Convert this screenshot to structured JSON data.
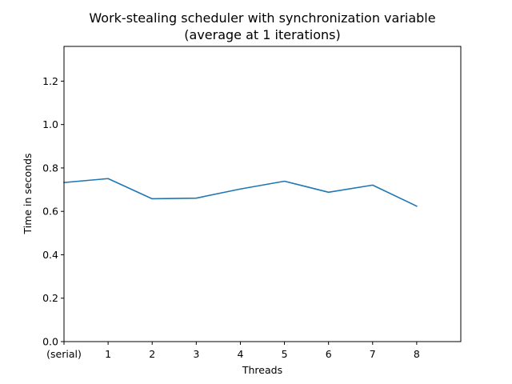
{
  "chart_data": {
    "type": "line",
    "title": "Work-stealing scheduler with synchronization variable",
    "subtitle": "(average at 1 iterations)",
    "xlabel": "Threads",
    "ylabel": "Time in seconds",
    "x": [
      0,
      1,
      2,
      3,
      4,
      5,
      6,
      7,
      8
    ],
    "x_tick_labels": [
      "(serial)",
      "1",
      "2",
      "3",
      "4",
      "5",
      "6",
      "7",
      "8"
    ],
    "xlim": [
      0,
      9
    ],
    "ylim": [
      0,
      1.36
    ],
    "y_ticks": [
      0.0,
      0.2,
      0.4,
      0.6,
      0.8,
      1.0,
      1.2
    ],
    "y_tick_labels": [
      "0.0",
      "0.2",
      "0.4",
      "0.6",
      "0.8",
      "1.0",
      "1.2"
    ],
    "grid": false,
    "series": [
      {
        "color": "#1f77b4",
        "values": [
          0.733,
          0.751,
          0.658,
          0.661,
          0.703,
          0.739,
          0.688,
          0.721,
          0.624
        ]
      }
    ]
  }
}
